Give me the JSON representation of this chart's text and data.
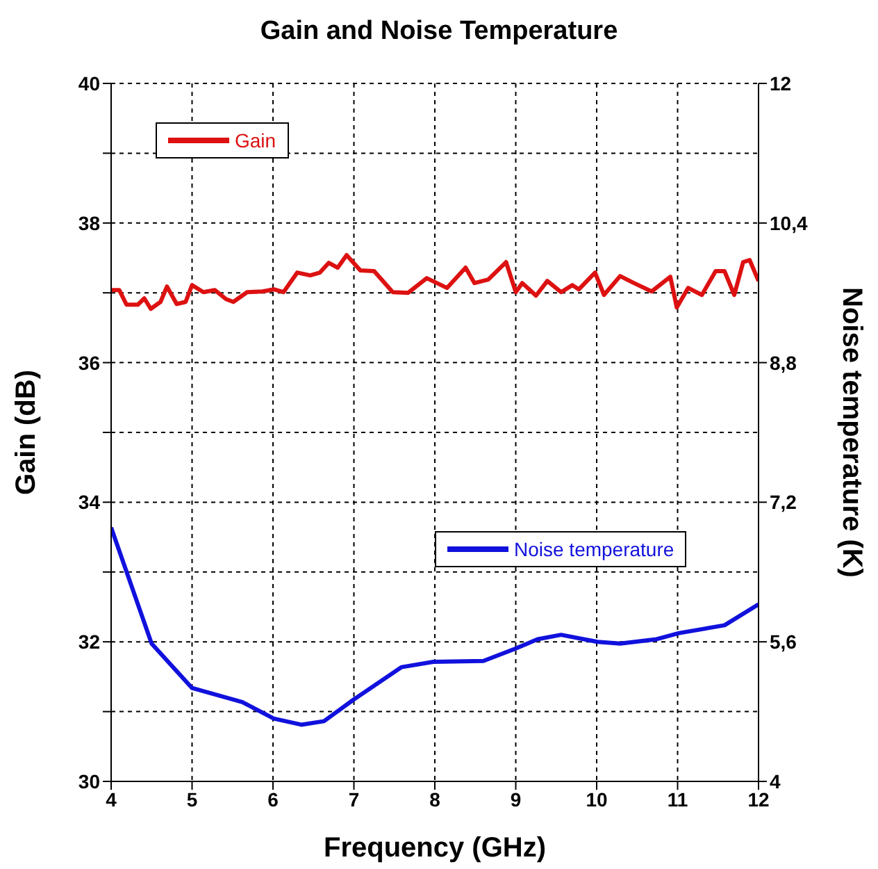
{
  "chart_data": {
    "type": "line",
    "title": "Gain and Noise Temperature",
    "xlabel": "Frequency (GHz)",
    "ylabel": "Gain (dB)",
    "y2label": "Noise temperature (K)",
    "xlim": [
      4,
      12
    ],
    "xticks": [
      4,
      5,
      6,
      7,
      8,
      9,
      10,
      11,
      12
    ],
    "ylim": [
      30,
      40
    ],
    "yticks": [
      30,
      {
        "value": 31,
        "label": null
      },
      32,
      {
        "value": 33,
        "label": null
      },
      34,
      {
        "value": 35,
        "label": null
      },
      36,
      {
        "value": 37,
        "label": null
      },
      38,
      {
        "value": 39,
        "label": null
      },
      40
    ],
    "y2lim": [
      4,
      12
    ],
    "y2ticks": [
      4,
      {
        "value": 5.6,
        "label": "5,6"
      },
      {
        "value": 7.2,
        "label": "7,2"
      },
      {
        "value": 8.8,
        "label": "8,8"
      },
      {
        "value": 10.4,
        "label": "10,4"
      },
      12
    ],
    "grid": true,
    "legend": "top left",
    "line_style": "solid",
    "marker": "none",
    "series": [
      {
        "name": "Gain",
        "color": "#dd1111",
        "x": [
          4.0,
          4.1,
          4.19,
          4.33,
          4.41,
          4.49,
          4.61,
          4.69,
          4.81,
          4.92,
          5.0,
          5.14,
          5.28,
          5.42,
          5.51,
          5.68,
          5.87,
          6.01,
          6.13,
          6.3,
          6.46,
          6.58,
          6.69,
          6.8,
          6.91,
          7.08,
          7.25,
          7.48,
          7.67,
          7.9,
          8.15,
          8.38,
          8.49,
          8.66,
          8.88,
          9.0,
          9.08,
          9.25,
          9.39,
          9.56,
          9.7,
          9.78,
          9.98,
          10.09,
          10.29,
          10.46,
          10.68,
          10.91,
          10.99,
          11.13,
          11.3,
          11.47,
          11.58,
          11.7,
          11.81,
          11.89,
          12.0
        ],
        "values": [
          37.04,
          37.04,
          36.83,
          36.83,
          36.92,
          36.77,
          36.87,
          37.09,
          36.84,
          36.87,
          37.11,
          37.01,
          37.04,
          36.91,
          36.87,
          37.01,
          37.02,
          37.05,
          37.01,
          37.29,
          37.25,
          37.29,
          37.43,
          37.36,
          37.54,
          37.32,
          37.31,
          37.01,
          37.0,
          37.21,
          37.07,
          37.36,
          37.14,
          37.19,
          37.44,
          37.01,
          37.14,
          36.96,
          37.17,
          37.01,
          37.11,
          37.05,
          37.29,
          36.97,
          37.24,
          37.14,
          37.02,
          37.23,
          36.79,
          37.07,
          36.97,
          37.31,
          37.31,
          36.97,
          37.44,
          37.47,
          37.17
        ]
      },
      {
        "name": "Noise temperature",
        "color": "#1111dd",
        "axis": "y2",
        "x": [
          4.0,
          4.5,
          5.0,
          5.62,
          6.01,
          6.35,
          6.63,
          7.0,
          7.59,
          7.98,
          8.6,
          8.99,
          9.27,
          9.56,
          10.01,
          10.29,
          10.74,
          11.02,
          11.58,
          12.0
        ],
        "values": [
          6.91,
          5.58,
          5.07,
          4.91,
          4.72,
          4.65,
          4.69,
          4.94,
          5.31,
          5.37,
          5.38,
          5.52,
          5.63,
          5.68,
          5.6,
          5.58,
          5.63,
          5.7,
          5.79,
          6.03
        ]
      }
    ]
  }
}
